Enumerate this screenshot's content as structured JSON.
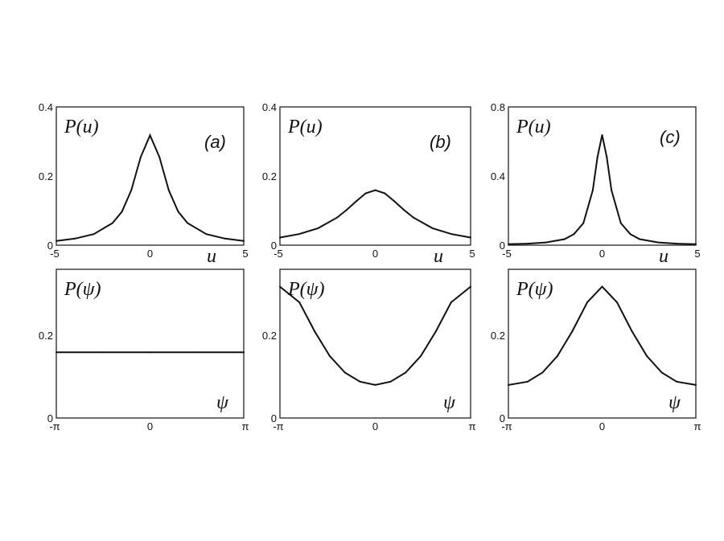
{
  "chart_data": [
    {
      "type": "line",
      "panel": "(a)",
      "ylabel": "P(u)",
      "xlabel": "u",
      "xlim": [
        -5,
        5
      ],
      "ylim": [
        0,
        0.4
      ],
      "xticks": [
        "-5",
        "0",
        "5"
      ],
      "yticks": [
        "0",
        "0.2",
        "0.4"
      ],
      "x": [
        -5,
        -4,
        -3,
        -2,
        -1.5,
        -1,
        -0.5,
        0,
        0.5,
        1,
        1.5,
        2,
        3,
        4,
        5
      ],
      "values": [
        0.012,
        0.019,
        0.032,
        0.064,
        0.097,
        0.159,
        0.255,
        0.318,
        0.255,
        0.159,
        0.097,
        0.064,
        0.032,
        0.019,
        0.012
      ]
    },
    {
      "type": "line",
      "panel": "(b)",
      "ylabel": "P(u)",
      "xlabel": "u",
      "xlim": [
        -5,
        5
      ],
      "ylim": [
        0,
        0.4
      ],
      "xticks": [
        "-5",
        "0",
        "5"
      ],
      "yticks": [
        "0",
        "0.2",
        "0.4"
      ],
      "x": [
        -5,
        -4,
        -3,
        -2,
        -1.5,
        -1,
        -0.5,
        0,
        0.5,
        1,
        1.5,
        2,
        3,
        4,
        5
      ],
      "values": [
        0.022,
        0.032,
        0.049,
        0.08,
        0.102,
        0.127,
        0.15,
        0.159,
        0.15,
        0.127,
        0.102,
        0.08,
        0.049,
        0.032,
        0.022
      ]
    },
    {
      "type": "line",
      "panel": "(c)",
      "ylabel": "P(u)",
      "xlabel": "u",
      "xlim": [
        -5,
        5
      ],
      "ylim": [
        0,
        0.8
      ],
      "xticks": [
        "-5",
        "0",
        "5"
      ],
      "yticks": [
        "0",
        "0.4",
        "0.8"
      ],
      "x": [
        -5,
        -4,
        -3,
        -2,
        -1.5,
        -1,
        -0.5,
        -0.25,
        0,
        0.25,
        0.5,
        1,
        1.5,
        2,
        3,
        4,
        5
      ],
      "values": [
        0.006,
        0.009,
        0.016,
        0.035,
        0.064,
        0.127,
        0.318,
        0.509,
        0.637,
        0.509,
        0.318,
        0.127,
        0.064,
        0.035,
        0.016,
        0.009,
        0.006
      ]
    },
    {
      "type": "line",
      "panel": "(a)",
      "ylabel": "P(ψ)",
      "xlabel": "ψ",
      "xlim": [
        -3.1416,
        3.1416
      ],
      "ylim": [
        0,
        0.36
      ],
      "xticks": [
        "-π",
        "0",
        "π"
      ],
      "yticks": [
        "0",
        "0.2"
      ],
      "x": [
        -3.1416,
        -1.5708,
        0,
        1.5708,
        3.1416
      ],
      "values": [
        0.159,
        0.159,
        0.159,
        0.159,
        0.159
      ]
    },
    {
      "type": "line",
      "panel": "(b)",
      "ylabel": "P(ψ)",
      "xlabel": "ψ",
      "xlim": [
        -3.1416,
        3.1416
      ],
      "ylim": [
        0,
        0.36
      ],
      "xticks": [
        "-π",
        "0",
        "π"
      ],
      "yticks": [
        "0",
        "0.2"
      ],
      "x": [
        -3.1416,
        -2.5,
        -2.0,
        -1.5,
        -1.0,
        -0.5,
        0,
        0.5,
        1.0,
        1.5,
        2.0,
        2.5,
        3.1416
      ],
      "values": [
        0.318,
        0.28,
        0.21,
        0.15,
        0.11,
        0.088,
        0.08,
        0.088,
        0.11,
        0.15,
        0.21,
        0.28,
        0.318
      ]
    },
    {
      "type": "line",
      "panel": "(c)",
      "ylabel": "P(ψ)",
      "xlabel": "ψ",
      "xlim": [
        -3.1416,
        3.1416
      ],
      "ylim": [
        0,
        0.36
      ],
      "xticks": [
        "-π",
        "0",
        "π"
      ],
      "yticks": [
        "0",
        "0.2"
      ],
      "x": [
        -3.1416,
        -2.5,
        -2.0,
        -1.5,
        -1.0,
        -0.5,
        0,
        0.5,
        1.0,
        1.5,
        2.0,
        2.5,
        3.1416
      ],
      "values": [
        0.08,
        0.088,
        0.11,
        0.15,
        0.21,
        0.28,
        0.318,
        0.28,
        0.21,
        0.15,
        0.11,
        0.088,
        0.08
      ]
    }
  ]
}
